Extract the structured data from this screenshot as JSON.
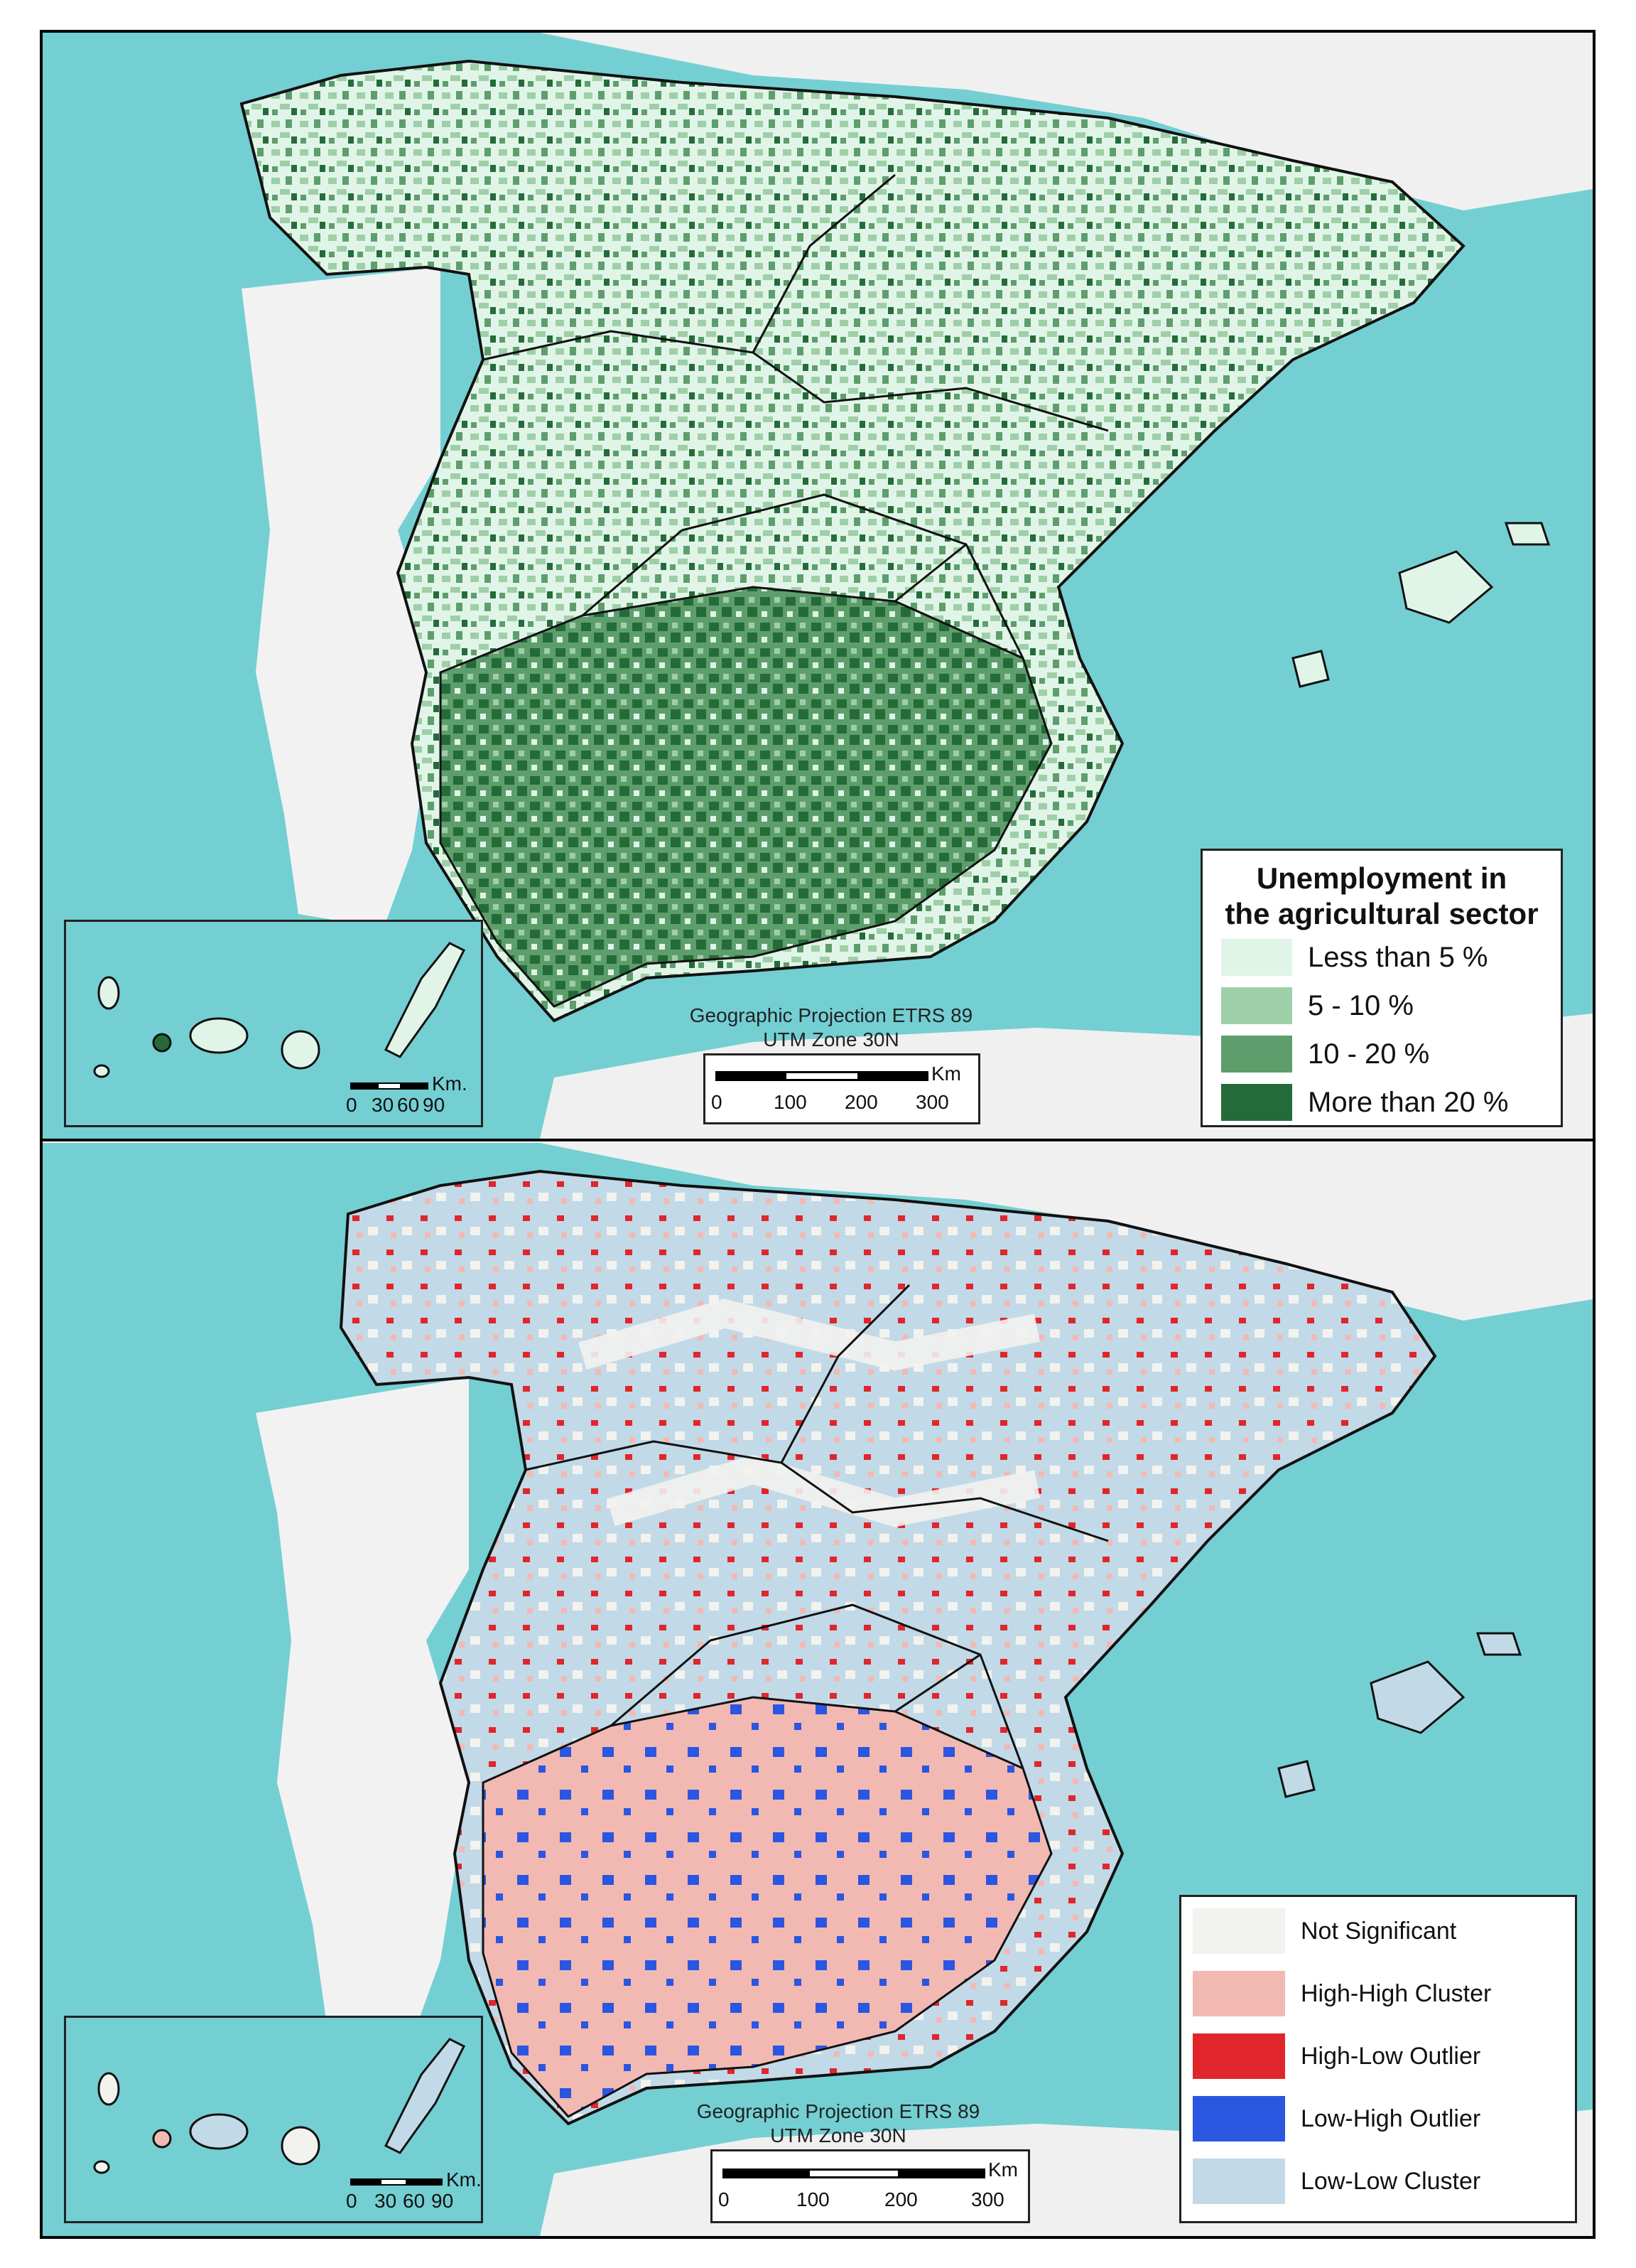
{
  "top_map": {
    "legend": {
      "title_line1": "Unemployment in",
      "title_line2": "the agricultural sector",
      "items": [
        {
          "label": "Less than 5 %",
          "color": "#e0f5e8"
        },
        {
          "label": " 5 - 10 %",
          "color": "#9fcfa8"
        },
        {
          "label": "10 - 20 %",
          "color": "#5e9e6d"
        },
        {
          "label": "More than 20 %",
          "color": "#256b3a"
        }
      ]
    },
    "projection_line1": "Geographic Projection ETRS 89",
    "projection_line2": "UTM Zone 30N",
    "scale": {
      "unit": "Km",
      "ticks": [
        "0",
        "100",
        "200",
        "300"
      ]
    },
    "inset_scale": {
      "unit": "Km.",
      "ticks": [
        "0",
        "30",
        "60",
        "90"
      ]
    }
  },
  "bottom_map": {
    "legend": {
      "items": [
        {
          "label": "Not Significant",
          "color": "#f2f2ee"
        },
        {
          "label": "High-High Cluster",
          "color": "#f2b9b3"
        },
        {
          "label": "High-Low Outlier",
          "color": "#e0262a"
        },
        {
          "label": "Low-High Outlier",
          "color": "#2a56e0"
        },
        {
          "label": "Low-Low Cluster",
          "color": "#c2d9e8"
        }
      ]
    },
    "projection_line1": "Geographic Projection ETRS 89",
    "projection_line2": "UTM Zone 30N",
    "scale": {
      "unit": "Km",
      "ticks": [
        "0",
        "100",
        "200",
        "300"
      ]
    },
    "inset_scale": {
      "unit": "Km.",
      "ticks": [
        "0",
        "30",
        "60",
        "90"
      ]
    }
  },
  "colors": {
    "sea": "#74cfd3",
    "sea_deep": "#5ec3c9",
    "land_outside": "#f2f2f2",
    "border": "#111111"
  }
}
